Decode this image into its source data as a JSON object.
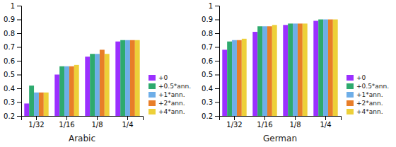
{
  "chart_data": [
    {
      "type": "bar",
      "title": "Arabic",
      "categories": [
        "1/32",
        "1/16",
        "1/8",
        "1/4"
      ],
      "series": [
        {
          "name": "+0",
          "color": "#9B30FF",
          "values": [
            0.29,
            0.5,
            0.63,
            0.74
          ]
        },
        {
          "name": "+0.5*ann.",
          "color": "#2EAA6E",
          "values": [
            0.42,
            0.56,
            0.65,
            0.75
          ]
        },
        {
          "name": "+1*ann.",
          "color": "#6EAEE8",
          "values": [
            0.37,
            0.56,
            0.65,
            0.75
          ]
        },
        {
          "name": "+2*ann.",
          "color": "#E87E28",
          "values": [
            0.37,
            0.56,
            0.68,
            0.75
          ]
        },
        {
          "name": "+4*ann.",
          "color": "#EDD039",
          "values": [
            0.37,
            0.57,
            0.65,
            0.75
          ]
        }
      ],
      "ylim": [
        0.2,
        1.0
      ],
      "yticks": [
        0.2,
        0.3,
        0.4,
        0.5,
        0.6,
        0.7,
        0.8,
        0.9,
        1
      ],
      "grid": false,
      "legend": "lower right"
    },
    {
      "type": "bar",
      "title": "German",
      "categories": [
        "1/32",
        "1/16",
        "1/8",
        "1/4"
      ],
      "series": [
        {
          "name": "+0",
          "color": "#9B30FF",
          "values": [
            0.68,
            0.81,
            0.86,
            0.89
          ]
        },
        {
          "name": "+0.5*ann.",
          "color": "#2EAA6E",
          "values": [
            0.74,
            0.85,
            0.87,
            0.9
          ]
        },
        {
          "name": "+1*ann.",
          "color": "#6EAEE8",
          "values": [
            0.75,
            0.85,
            0.87,
            0.9
          ]
        },
        {
          "name": "+2*ann.",
          "color": "#E87E28",
          "values": [
            0.75,
            0.85,
            0.87,
            0.9
          ]
        },
        {
          "name": "+4*ann.",
          "color": "#EDD039",
          "values": [
            0.76,
            0.86,
            0.87,
            0.9
          ]
        }
      ],
      "ylim": [
        0.2,
        1.0
      ],
      "yticks": [
        0.2,
        0.3,
        0.4,
        0.5,
        0.6,
        0.7,
        0.8,
        0.9,
        1
      ],
      "grid": false,
      "legend": "lower right"
    }
  ]
}
